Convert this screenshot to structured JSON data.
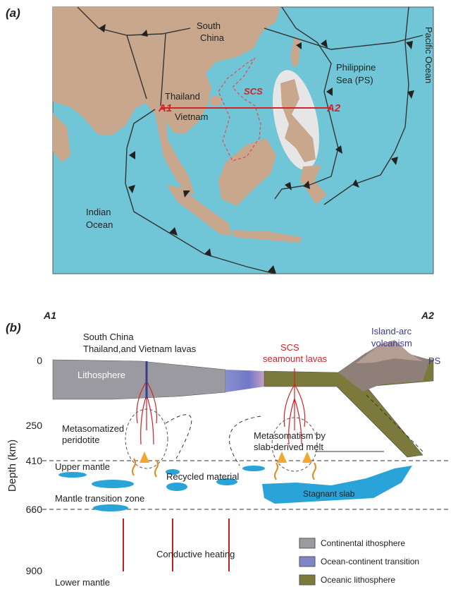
{
  "panel_a": {
    "label": "(a)",
    "places": [
      {
        "lines": [
          "South",
          "China"
        ]
      },
      {
        "lines": [
          "Philippine",
          "Sea (PS)"
        ]
      },
      {
        "lines": [
          "Pacific Ocean"
        ]
      },
      {
        "lines": [
          "Thailand"
        ]
      },
      {
        "lines": [
          "Vietnam"
        ]
      },
      {
        "lines": [
          "SCS"
        ]
      },
      {
        "lines": [
          "A1"
        ]
      },
      {
        "lines": [
          "A2"
        ]
      },
      {
        "lines": [
          "Indian",
          "Ocean"
        ]
      }
    ]
  },
  "panel_b": {
    "label": "(b)",
    "left_end": "A1",
    "right_end": "A2",
    "y_axis_title": "Depth (km)",
    "depth_ticks": [
      0,
      250,
      410,
      660,
      900
    ],
    "annotations": [
      {
        "lines": [
          "South China",
          "Thailand,and Vietnam lavas"
        ]
      },
      {
        "lines": [
          "SCS",
          "seamount lavas"
        ]
      },
      {
        "lines": [
          "Island-arc",
          "volcanism"
        ]
      },
      {
        "lines": [
          "PS"
        ]
      },
      {
        "lines": [
          "Lithosphere"
        ]
      },
      {
        "lines": [
          "Metasomatized",
          "peridotite"
        ]
      },
      {
        "lines": [
          "Upper mantle"
        ]
      },
      {
        "lines": [
          "Metasomatism by",
          "slab-derived melt"
        ]
      },
      {
        "lines": [
          "Recycled material"
        ]
      },
      {
        "lines": [
          "Stagnant slab"
        ]
      },
      {
        "lines": [
          "Mantle transition zone"
        ]
      },
      {
        "lines": [
          "Conductive heating"
        ]
      },
      {
        "lines": [
          "Lower mantle"
        ]
      }
    ],
    "legend": [
      {
        "label": "Continental ithosphere",
        "color": "#9a9aa0"
      },
      {
        "label": "Ocean-continent transition",
        "color": "#7f86c8"
      },
      {
        "label": "Oceanic lithosphere",
        "color": "#7c7a3a"
      }
    ]
  }
}
